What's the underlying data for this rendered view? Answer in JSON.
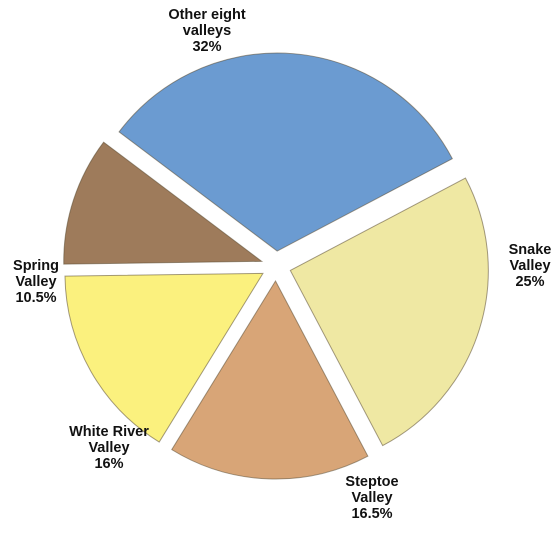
{
  "chart_data": {
    "type": "pie",
    "exploded": true,
    "slices": [
      {
        "name": "Other eight valleys",
        "value": 32,
        "value_label": "32%",
        "label_lines": [
          "Other eight",
          "valleys"
        ],
        "color": "#6b9bd1"
      },
      {
        "name": "Snake Valley",
        "value": 25,
        "value_label": "25%",
        "label_lines": [
          "Snake",
          "Valley"
        ],
        "color": "#efe8a3"
      },
      {
        "name": "Steptoe Valley",
        "value": 16.5,
        "value_label": "16.5%",
        "label_lines": [
          "Steptoe",
          "Valley"
        ],
        "color": "#d8a577"
      },
      {
        "name": "White River Valley",
        "value": 16,
        "value_label": "16%",
        "label_lines": [
          "White River",
          "Valley"
        ],
        "color": "#fbf17e"
      },
      {
        "name": "Spring Valley",
        "value": 10.5,
        "value_label": "10.5%",
        "label_lines": [
          "Spring",
          "Valley"
        ],
        "color": "#9e7b5b"
      }
    ]
  }
}
